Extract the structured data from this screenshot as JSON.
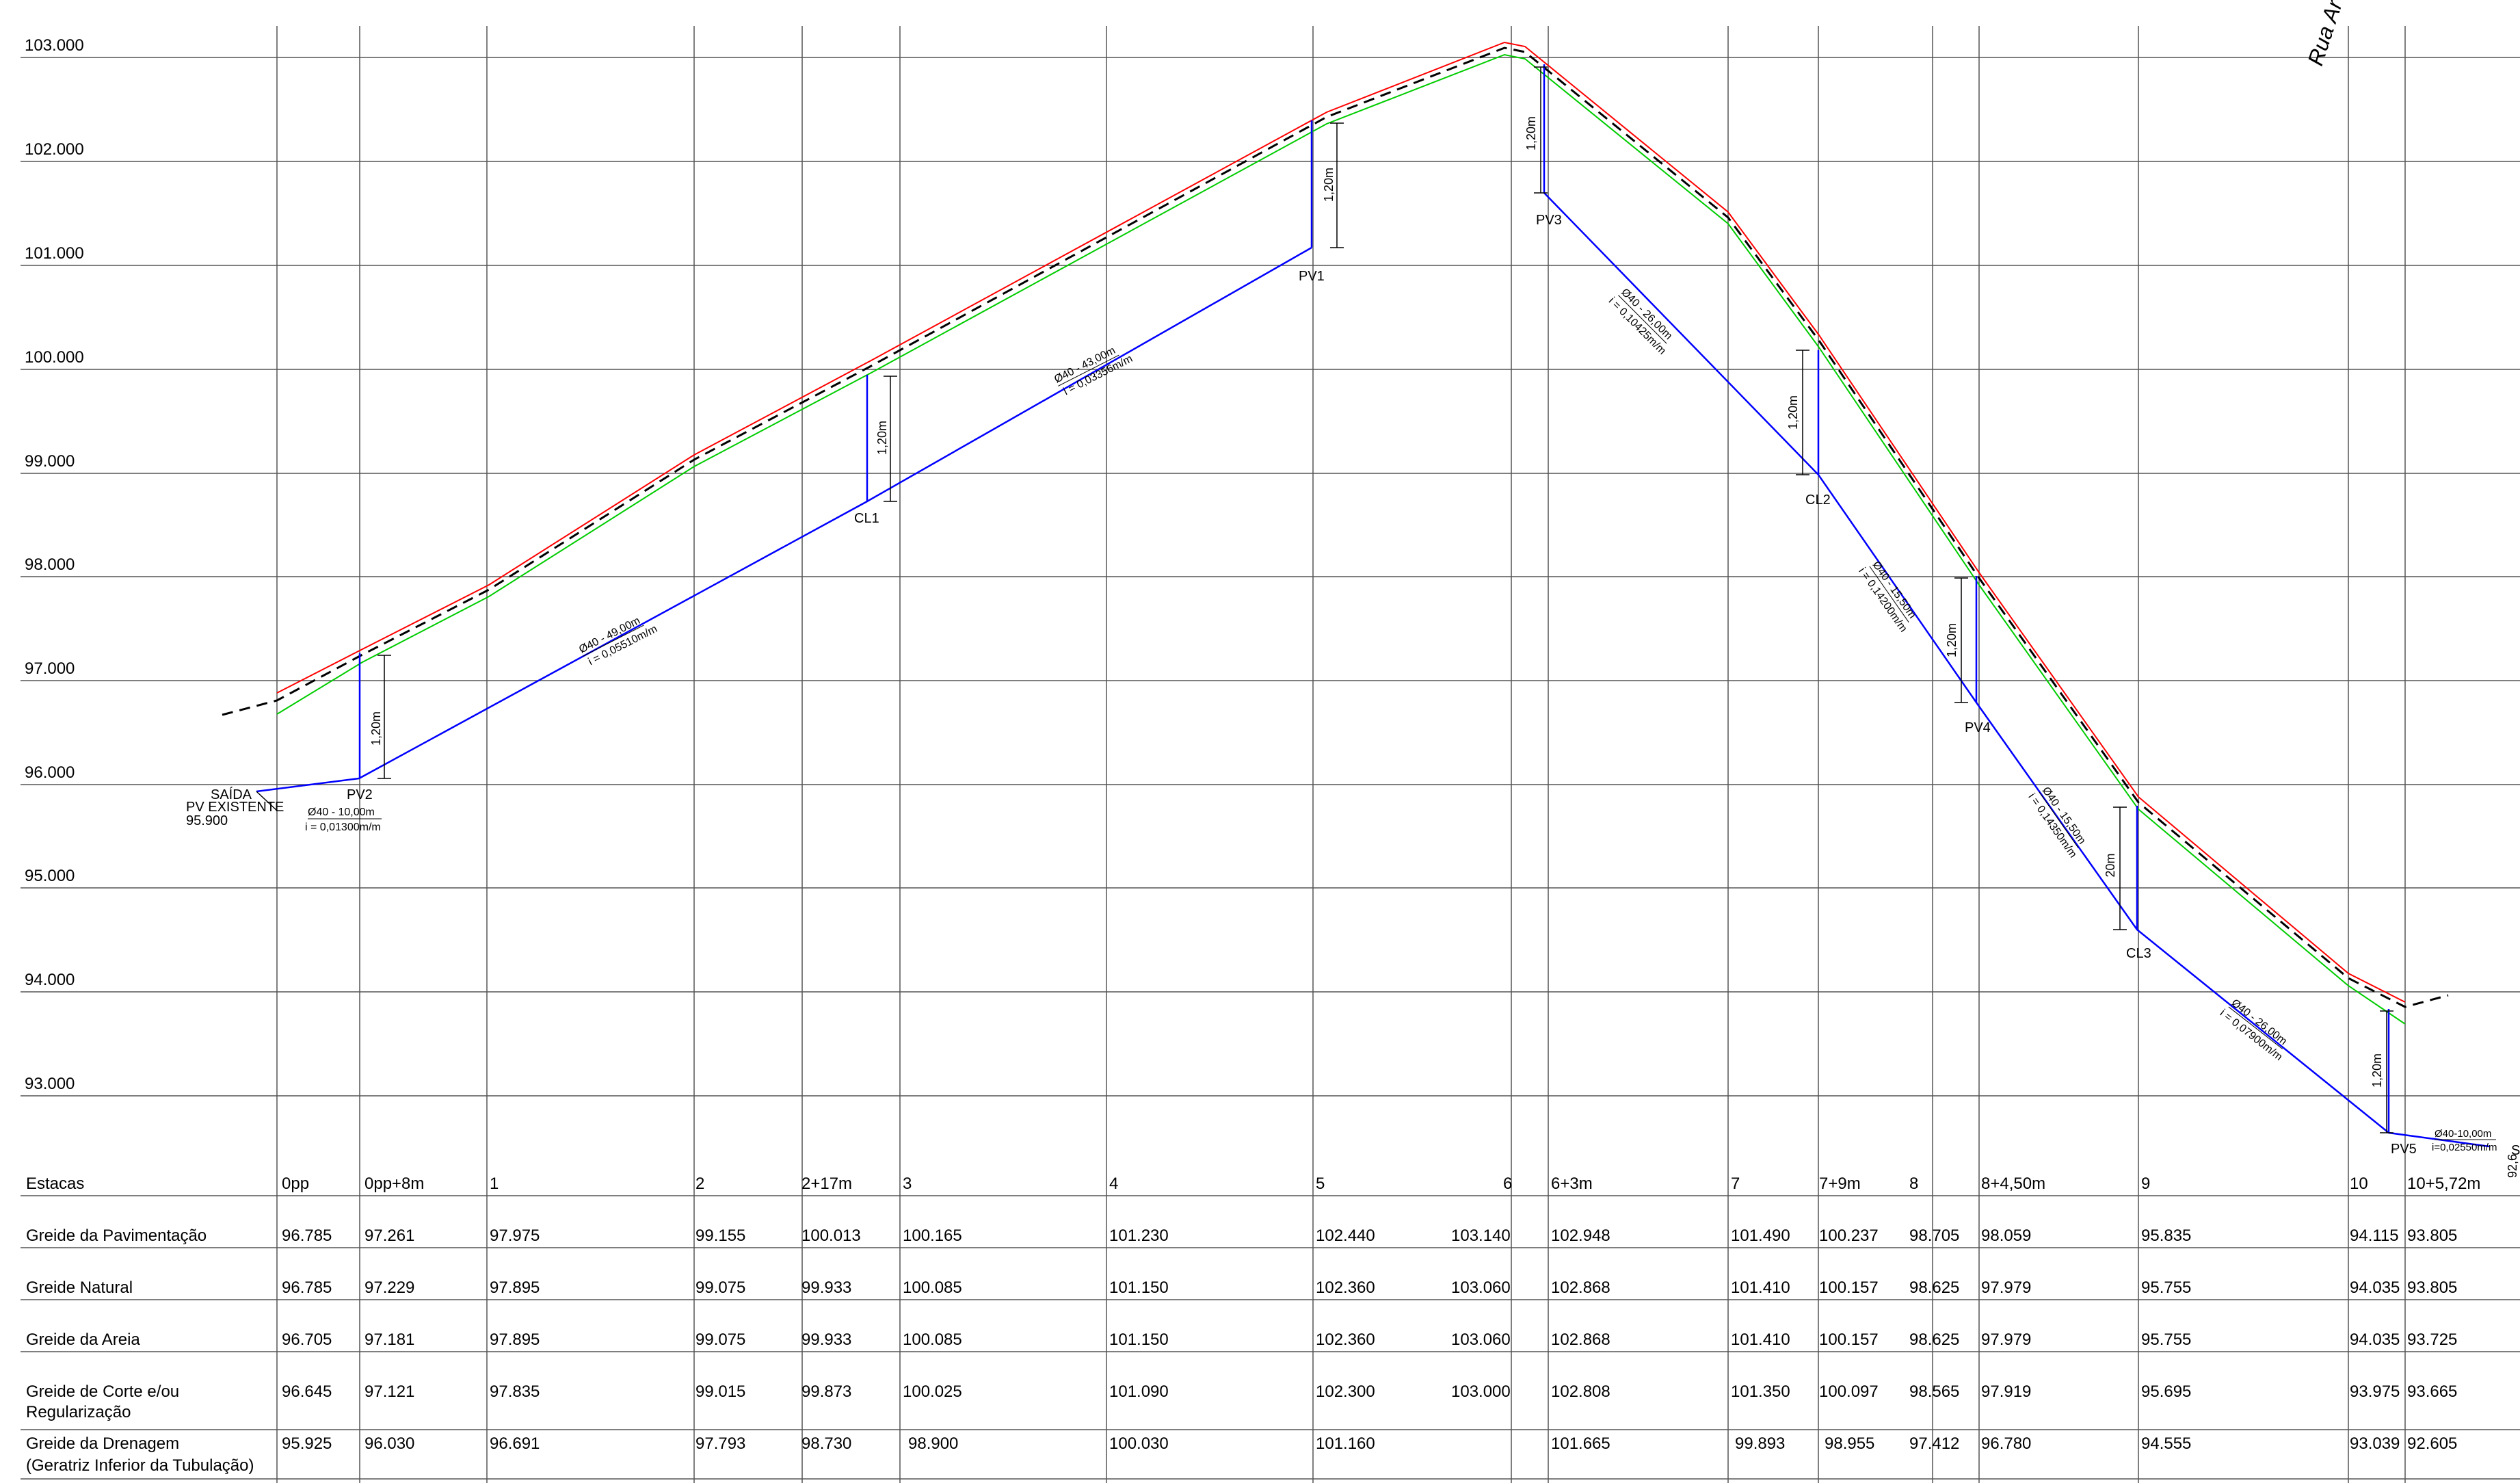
{
  "elevations": [
    "103.000",
    "102.000",
    "101.000",
    "100.000",
    "99.000",
    "98.000",
    "97.000",
    "96.000",
    "95.000",
    "94.000",
    "93.000"
  ],
  "stations": [
    {
      "label": "0pp",
      "pav": "96.785",
      "nat": "96.785",
      "areia": "96.705",
      "corte": "96.645",
      "dren": "95.925"
    },
    {
      "label": "0pp+8m",
      "pav": "97.261",
      "nat": "97.229",
      "areia": "97.181",
      "corte": "97.121",
      "dren": "96.030"
    },
    {
      "label": "1",
      "pav": "97.975",
      "nat": "97.895",
      "areia": "97.895",
      "corte": "97.835",
      "dren": "96.691"
    },
    {
      "label": "2",
      "pav": "99.155",
      "nat": "99.075",
      "areia": "99.075",
      "corte": "99.015",
      "dren": "97.793"
    },
    {
      "label": "2+17m",
      "pav": "100.013",
      "nat": "99.933",
      "areia": "99.933",
      "corte": "99.873",
      "dren": "98.730"
    },
    {
      "label": "3",
      "pav": "100.165",
      "nat": "100.085",
      "areia": "100.085",
      "corte": "100.025",
      "dren": "98.900"
    },
    {
      "label": "4",
      "pav": "101.230",
      "nat": "101.150",
      "areia": "101.150",
      "corte": "101.090",
      "dren": "100.030"
    },
    {
      "label": "5",
      "pav": "102.440",
      "nat": "102.360",
      "areia": "102.360",
      "corte": "102.300",
      "dren": "101.160"
    },
    {
      "label": "6",
      "pav": "103.140",
      "nat": "103.060",
      "areia": "103.060",
      "corte": "103.000",
      "dren": ""
    },
    {
      "label": "6+3m",
      "pav": "102.948",
      "nat": "102.868",
      "areia": "102.868",
      "corte": "102.808",
      "dren": "101.665"
    },
    {
      "label": "7",
      "pav": "101.490",
      "nat": "101.410",
      "areia": "101.410",
      "corte": "101.350",
      "dren": "99.893"
    },
    {
      "label": "7+9m",
      "pav": "100.237",
      "nat": "100.157",
      "areia": "100.157",
      "corte": "100.097",
      "dren": "98.955"
    },
    {
      "label": "8",
      "pav": "98.705",
      "nat": "98.625",
      "areia": "98.625",
      "corte": "98.565",
      "dren": "97.412"
    },
    {
      "label": "8+4,50m",
      "pav": "98.059",
      "nat": "97.979",
      "areia": "97.979",
      "corte": "97.919",
      "dren": "96.780"
    },
    {
      "label": "9",
      "pav": "95.835",
      "nat": "95.755",
      "areia": "95.755",
      "corte": "95.695",
      "dren": "94.555"
    },
    {
      "label": "10",
      "pav": "94.115",
      "nat": "94.035",
      "areia": "94.035",
      "corte": "93.975",
      "dren": "93.039"
    },
    {
      "label": "10+5,72m",
      "pav": "93.805",
      "nat": "93.805",
      "areia": "93.725",
      "corte": "93.665",
      "dren": "92.605"
    }
  ],
  "rows": {
    "estacas": "Estacas",
    "pav": "Greide da Pavimentação",
    "nat": "Greide Natural",
    "areia": "Greide da Areia",
    "corte_1": "Greide de Corte e/ou",
    "corte_2": "Regularização",
    "dren_1": "Greide da Drenagem",
    "dren_2": "(Geratriz Inferior da Tubulação)"
  },
  "street_label": "Rua Ar",
  "outlet": {
    "line1": "SAÍDA",
    "line2": "PV EXISTENTE",
    "line3": "95.900"
  },
  "nodes": [
    "PV1",
    "PV2",
    "PV3",
    "PV4",
    "PV5",
    "CL1",
    "CL2",
    "CL3"
  ],
  "depth_label": "1,20m",
  "depth_label_short": "20m",
  "pipes": [
    {
      "d": "Ø40 - 10,00m",
      "i": "i = 0,01300m/m"
    },
    {
      "d": "Ø40 - 49,00m",
      "i": "i = 0,05510m/m"
    },
    {
      "d": "Ø40 - 43,00m",
      "i": "i = 0,03356m/m"
    },
    {
      "d": "Ø40 - 26,00m",
      "i": "i = 0,10425m/m"
    },
    {
      "d": "Ø40 - 15,50m",
      "i": "i = 0,14200m/m"
    },
    {
      "d": "Ø40 - 15,50m",
      "i": "i = 0,14350m/m"
    },
    {
      "d": "Ø40 - 26,00m",
      "i": "i = 0,07900m/m"
    },
    {
      "d": "Ø40-10,00m",
      "i": "i=0,02550m/m"
    }
  ],
  "edge_marks": {
    "right_a": "S",
    "right_b": "92,6"
  },
  "colors": {
    "pavement": "#ff0000",
    "sand": "#00cc00",
    "natural": "#000000",
    "pipe": "#0000ff",
    "grid": "#555555"
  }
}
